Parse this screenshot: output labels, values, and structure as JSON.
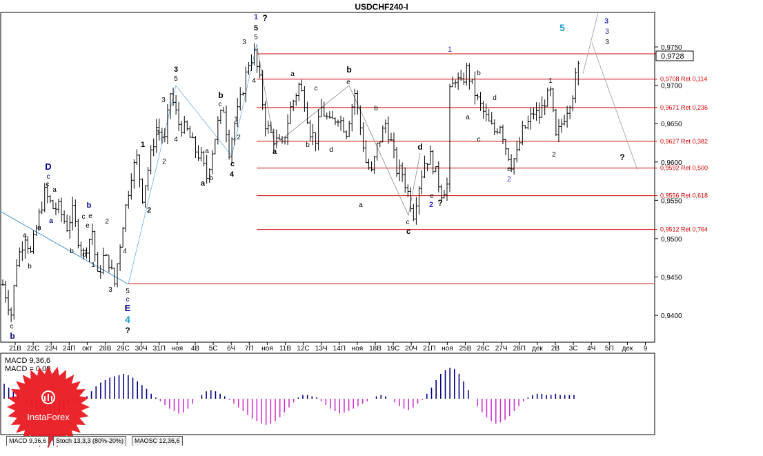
{
  "window": {
    "title": "USDCHF240-I",
    "current_price_label": "0,9728",
    "logo_text": "InstaForex"
  },
  "indicator_tabs": [
    {
      "label": "MACD 9,36,6"
    },
    {
      "label": "Stoch 13,3,3 (80%-20%)"
    },
    {
      "label": "MAOSC 12,36,6"
    }
  ],
  "chart_data": {
    "type": "candlestick",
    "symbol": "USDCHF240-I",
    "timeframe": "H4",
    "ylim": [
      0.9365,
      0.9795
    ],
    "y_ticks": [
      "0,9750",
      "0,9700",
      "0,9650",
      "0,9600",
      "0,9550",
      "0,9500",
      "0,9450",
      "0,9400"
    ],
    "y_tick_values": [
      0.975,
      0.97,
      0.965,
      0.96,
      0.955,
      0.95,
      0.945,
      0.94
    ],
    "x_ticks": [
      "21В",
      "22С",
      "23Ч",
      "24П",
      "окт",
      "28В",
      "29С",
      "30Ч",
      "31П",
      "ноя",
      "4В",
      "5С",
      "6Ч",
      "7П",
      "ноя",
      "11В",
      "12С",
      "13Ч",
      "14П",
      "ноя",
      "18В",
      "19С",
      "20Ч",
      "21П",
      "ноя",
      "25В",
      "26С",
      "27Ч",
      "28П",
      "дек",
      "2В",
      "3С",
      "4Ч",
      "5П",
      "дек",
      "9"
    ],
    "fib_levels": [
      {
        "price": 0.9708,
        "label": "0,9708 Ret 0,114"
      },
      {
        "price": 0.9671,
        "label": "0,9671 Ret 0,236"
      },
      {
        "price": 0.9627,
        "label": "0,9627 Ret 0,382"
      },
      {
        "price": 0.9592,
        "label": "0,9592 Ret 0,500"
      },
      {
        "price": 0.9556,
        "label": "0,9556 Ret 0,618"
      },
      {
        "price": 0.9512,
        "label": "0,9512 Ret 0,764"
      }
    ],
    "fib_range": {
      "high": 0.9741,
      "low": 0.9441
    },
    "current_price": 0.9728,
    "path_points": [
      [
        0,
        0.944
      ],
      [
        3,
        0.9402
      ],
      [
        5,
        0.947
      ],
      [
        8,
        0.9505
      ],
      [
        10,
        0.948
      ],
      [
        13,
        0.953
      ],
      [
        15,
        0.956
      ],
      [
        18,
        0.954
      ],
      [
        20,
        0.954
      ],
      [
        23,
        0.9515
      ],
      [
        25,
        0.9535
      ],
      [
        27,
        0.95
      ],
      [
        29,
        0.948
      ],
      [
        32,
        0.951
      ],
      [
        34,
        0.945
      ],
      [
        36,
        0.9475
      ],
      [
        38,
        0.947
      ],
      [
        40,
        0.9441
      ],
      [
        43,
        0.952
      ],
      [
        46,
        0.9585
      ],
      [
        48,
        0.9605
      ],
      [
        50,
        0.9555
      ],
      [
        52,
        0.959
      ],
      [
        55,
        0.9645
      ],
      [
        58,
        0.9628
      ],
      [
        60,
        0.969
      ],
      [
        63,
        0.965
      ],
      [
        66,
        0.964
      ],
      [
        69,
        0.9615
      ],
      [
        71,
        0.9605
      ],
      [
        73,
        0.958
      ],
      [
        75,
        0.9615
      ],
      [
        77,
        0.965
      ],
      [
        79,
        0.967
      ],
      [
        81,
        0.9615
      ],
      [
        83,
        0.965
      ],
      [
        85,
        0.968
      ],
      [
        88,
        0.973
      ],
      [
        90,
        0.9741
      ],
      [
        92,
        0.9705
      ],
      [
        94,
        0.965
      ],
      [
        97,
        0.963
      ],
      [
        100,
        0.962
      ],
      [
        103,
        0.967
      ],
      [
        106,
        0.97
      ],
      [
        108,
        0.968
      ],
      [
        110,
        0.964
      ],
      [
        112,
        0.963
      ],
      [
        114,
        0.967
      ],
      [
        117,
        0.965
      ],
      [
        120,
        0.966
      ],
      [
        123,
        0.964
      ],
      [
        126,
        0.969
      ],
      [
        128,
        0.9645
      ],
      [
        130,
        0.96
      ],
      [
        132,
        0.9585
      ],
      [
        134,
        0.962
      ],
      [
        137,
        0.965
      ],
      [
        139,
        0.9625
      ],
      [
        141,
        0.959
      ],
      [
        143,
        0.9585
      ],
      [
        145,
        0.956
      ],
      [
        147,
        0.9533
      ],
      [
        149,
        0.957
      ],
      [
        151,
        0.96
      ],
      [
        153,
        0.9607
      ],
      [
        155,
        0.9585
      ],
      [
        157,
        0.956
      ],
      [
        159,
        0.957
      ],
      [
        160,
        0.969
      ],
      [
        162,
        0.971
      ],
      [
        164,
        0.97
      ],
      [
        166,
        0.972
      ],
      [
        168,
        0.97
      ],
      [
        170,
        0.968
      ],
      [
        172,
        0.9665
      ],
      [
        174,
        0.965
      ],
      [
        176,
        0.964
      ],
      [
        178,
        0.965
      ],
      [
        180,
        0.962
      ],
      [
        182,
        0.9598
      ],
      [
        184,
        0.961
      ],
      [
        186,
        0.964
      ],
      [
        188,
        0.965
      ],
      [
        190,
        0.9665
      ],
      [
        192,
        0.966
      ],
      [
        194,
        0.968
      ],
      [
        196,
        0.969
      ],
      [
        198,
        0.963
      ],
      [
        200,
        0.965
      ],
      [
        202,
        0.967
      ],
      [
        204,
        0.969
      ],
      [
        206,
        0.9728
      ]
    ],
    "macd_values": [
      1.2,
      0.9,
      0.6,
      0.3,
      0.0,
      -0.3,
      -0.6,
      -0.9,
      -1.2,
      -1.4,
      -1.5,
      -1.4,
      -1.1,
      -0.8,
      -0.5,
      -0.3,
      -0.2,
      -0.1,
      0.2,
      0.6,
      1.0,
      1.3,
      1.5,
      1.7,
      1.8,
      1.9,
      2.0,
      1.9,
      1.7,
      1.4,
      1.1,
      0.8,
      0.4,
      0.1,
      -0.2,
      -0.5,
      -0.8,
      -1.0,
      -1.2,
      -1.1,
      -0.8,
      -0.4,
      0.0,
      0.3,
      0.6,
      0.7,
      0.6,
      0.4,
      0.2,
      -0.1,
      -0.4,
      -0.7,
      -1.0,
      -1.3,
      -1.6,
      -1.8,
      -2.0,
      -2.1,
      -2.0,
      -1.8,
      -1.5,
      -1.1,
      -0.7,
      -0.3,
      0.1,
      0.3,
      0.3,
      0.2,
      0.1,
      -0.2,
      -0.5,
      -0.8,
      -1.0,
      -1.2,
      -1.1,
      -1.0,
      -0.8,
      -0.6,
      -0.4,
      -0.2,
      0.0,
      0.2,
      0.3,
      0.2,
      0.0,
      -0.3,
      -0.6,
      -0.8,
      -0.9,
      -0.7,
      -0.4,
      -0.1,
      0.4,
      0.9,
      1.5,
      2.0,
      2.3,
      2.5,
      2.4,
      2.0,
      1.4,
      0.7,
      0.0,
      -0.6,
      -1.1,
      -1.5,
      -1.8,
      -2.0,
      -1.9,
      -1.7,
      -1.4,
      -1.0,
      -0.6,
      -0.2,
      0.1,
      0.3,
      0.4,
      0.4,
      0.3,
      0.3,
      0.4,
      0.3,
      0.3,
      0.3,
      0.3
    ]
  },
  "wave_labels": [
    {
      "text": "b",
      "x": 18,
      "y": 491,
      "color": "#000080",
      "size": 12,
      "bold": true
    },
    {
      "text": "c",
      "x": 17,
      "y": 476,
      "color": "#000000",
      "size": 10
    },
    {
      "text": "a",
      "x": 36,
      "y": 344,
      "color": "#000000",
      "size": 10
    },
    {
      "text": "b",
      "x": 43,
      "y": 389,
      "color": "#000000",
      "size": 10
    },
    {
      "text": "D",
      "x": 70,
      "y": 246,
      "color": "#000080",
      "size": 13,
      "bold": true
    },
    {
      "text": "c",
      "x": 70,
      "y": 259,
      "color": "#000080",
      "size": 10
    },
    {
      "text": "c",
      "x": 69,
      "y": 270,
      "color": "#000000",
      "size": 10
    },
    {
      "text": "a",
      "x": 79,
      "y": 278,
      "color": "#000000",
      "size": 10
    },
    {
      "text": "a",
      "x": 74,
      "y": 323,
      "color": "#000080",
      "size": 10,
      "bold": true
    },
    {
      "text": "a",
      "x": 57,
      "y": 333,
      "color": "#000000",
      "size": 10
    },
    {
      "text": "b",
      "x": 129,
      "y": 301,
      "color": "#000080",
      "size": 11,
      "bold": true
    },
    {
      "text": "e",
      "x": 131,
      "y": 316,
      "color": "#000000",
      "size": 10
    },
    {
      "text": "c",
      "x": 121,
      "y": 317,
      "color": "#000000",
      "size": 10
    },
    {
      "text": "e",
      "x": 127,
      "y": 330,
      "color": "#000000",
      "size": 10
    },
    {
      "text": "d",
      "x": 122,
      "y": 372,
      "color": "#000000",
      "size": 10
    },
    {
      "text": "b",
      "x": 104,
      "y": 367,
      "color": "#000000",
      "size": 10
    },
    {
      "text": "1",
      "x": 135,
      "y": 387,
      "color": "#000000",
      "size": 10
    },
    {
      "text": "2",
      "x": 155,
      "y": 324,
      "color": "#000000",
      "size": 10
    },
    {
      "text": "3",
      "x": 160,
      "y": 423,
      "color": "#000000",
      "size": 10
    },
    {
      "text": "4",
      "x": 181,
      "y": 367,
      "color": "#000000",
      "size": 10
    },
    {
      "text": "5",
      "x": 185,
      "y": 425,
      "color": "#000000",
      "size": 10
    },
    {
      "text": "c",
      "x": 185,
      "y": 437,
      "color": "#000080",
      "size": 10
    },
    {
      "text": "E",
      "x": 185,
      "y": 451,
      "color": "#000080",
      "size": 13,
      "bold": true
    },
    {
      "text": "4",
      "x": 185,
      "y": 468,
      "color": "#1a9bd7",
      "size": 14,
      "bold": true
    },
    {
      "text": "?",
      "x": 185,
      "y": 483,
      "color": "#000000",
      "size": 12,
      "bold": true
    },
    {
      "text": "1",
      "x": 207,
      "y": 213,
      "color": "#000000",
      "size": 11,
      "bold": true
    },
    {
      "text": "2",
      "x": 216,
      "y": 308,
      "color": "#000000",
      "size": 11,
      "bold": true
    },
    {
      "text": "3",
      "x": 255,
      "y": 104,
      "color": "#000000",
      "size": 11,
      "bold": true
    },
    {
      "text": "5",
      "x": 255,
      "y": 117,
      "color": "#000000",
      "size": 10
    },
    {
      "text": "1",
      "x": 229,
      "y": 195,
      "color": "#000000",
      "size": 10
    },
    {
      "text": "2",
      "x": 238,
      "y": 237,
      "color": "#000000",
      "size": 10
    },
    {
      "text": "3",
      "x": 237,
      "y": 148,
      "color": "#000000",
      "size": 10
    },
    {
      "text": "4",
      "x": 255,
      "y": 205,
      "color": "#000000",
      "size": 10
    },
    {
      "text": "a",
      "x": 300,
      "y": 222,
      "color": "#000000",
      "size": 10
    },
    {
      "text": "a",
      "x": 294,
      "y": 269,
      "color": "#000000",
      "size": 11,
      "bold": true
    },
    {
      "text": "b",
      "x": 306,
      "y": 261,
      "color": "#000000",
      "size": 10
    },
    {
      "text": "b",
      "x": 320,
      "y": 142,
      "color": "#000000",
      "size": 12,
      "bold": true
    },
    {
      "text": "c",
      "x": 319,
      "y": 154,
      "color": "#000000",
      "size": 10
    },
    {
      "text": "c",
      "x": 337,
      "y": 241,
      "color": "#000000",
      "size": 11,
      "bold": true
    },
    {
      "text": "4",
      "x": 336,
      "y": 256,
      "color": "#000000",
      "size": 11,
      "bold": true
    },
    {
      "text": "2",
      "x": 346,
      "y": 202,
      "color": "#000000",
      "size": 10
    },
    {
      "text": "1",
      "x": 342,
      "y": 176,
      "color": "#000000",
      "size": 10
    },
    {
      "text": "3",
      "x": 354,
      "y": 64,
      "color": "#000000",
      "size": 10
    },
    {
      "text": "4",
      "x": 368,
      "y": 120,
      "color": "#000000",
      "size": 10
    },
    {
      "text": "1",
      "x": 371,
      "y": 28,
      "color": "#3333bb",
      "size": 11,
      "bold": true
    },
    {
      "text": "5",
      "x": 371,
      "y": 44,
      "color": "#000000",
      "size": 11,
      "bold": true
    },
    {
      "text": "5",
      "x": 371,
      "y": 57,
      "color": "#000000",
      "size": 10
    },
    {
      "text": "?",
      "x": 384,
      "y": 30,
      "color": "#000000",
      "size": 12,
      "bold": true
    },
    {
      "text": "a",
      "x": 424,
      "y": 110,
      "color": "#000000",
      "size": 10
    },
    {
      "text": "c",
      "x": 458,
      "y": 131,
      "color": "#000000",
      "size": 10
    },
    {
      "text": "a",
      "x": 398,
      "y": 223,
      "color": "#000000",
      "size": 11,
      "bold": true
    },
    {
      "text": "b",
      "x": 446,
      "y": 213,
      "color": "#000000",
      "size": 10
    },
    {
      "text": "d",
      "x": 480,
      "y": 220,
      "color": "#000000",
      "size": 10
    },
    {
      "text": "b",
      "x": 506,
      "y": 105,
      "color": "#000000",
      "size": 12,
      "bold": true
    },
    {
      "text": "e",
      "x": 505,
      "y": 122,
      "color": "#000000",
      "size": 10
    },
    {
      "text": "b",
      "x": 545,
      "y": 160,
      "color": "#000000",
      "size": 10
    },
    {
      "text": "a",
      "x": 523,
      "y": 300,
      "color": "#000000",
      "size": 10
    },
    {
      "text": "c",
      "x": 591,
      "y": 325,
      "color": "#000000",
      "size": 10
    },
    {
      "text": "c",
      "x": 592,
      "y": 339,
      "color": "#000000",
      "size": 11,
      "bold": true
    },
    {
      "text": "d",
      "x": 609,
      "y": 217,
      "color": "#000000",
      "size": 12,
      "bold": true
    },
    {
      "text": "e",
      "x": 626,
      "y": 287,
      "color": "#000000",
      "size": 10
    },
    {
      "text": "2",
      "x": 625,
      "y": 300,
      "color": "#3333bb",
      "size": 11,
      "bold": true
    },
    {
      "text": "?",
      "x": 638,
      "y": 298,
      "color": "#000000",
      "size": 12,
      "bold": true
    },
    {
      "text": "1",
      "x": 652,
      "y": 75,
      "color": "#3333bb",
      "size": 11
    },
    {
      "text": "b",
      "x": 694,
      "y": 109,
      "color": "#000000",
      "size": 10
    },
    {
      "text": "a",
      "x": 678,
      "y": 173,
      "color": "#000000",
      "size": 10
    },
    {
      "text": "c",
      "x": 694,
      "y": 205,
      "color": "#000000",
      "size": 10
    },
    {
      "text": "d",
      "x": 717,
      "y": 145,
      "color": "#000000",
      "size": 10
    },
    {
      "text": "e",
      "x": 738,
      "y": 248,
      "color": "#000000",
      "size": 10
    },
    {
      "text": "2",
      "x": 738,
      "y": 263,
      "color": "#3333bb",
      "size": 11
    },
    {
      "text": "1",
      "x": 798,
      "y": 120,
      "color": "#000000",
      "size": 10
    },
    {
      "text": "2",
      "x": 803,
      "y": 227,
      "color": "#000000",
      "size": 10
    },
    {
      "text": "5",
      "x": 815,
      "y": 45,
      "color": "#1a9bd7",
      "size": 14,
      "bold": true
    },
    {
      "text": "3",
      "x": 879,
      "y": 34,
      "color": "#3333bb",
      "size": 11,
      "bold": true
    },
    {
      "text": "3",
      "x": 880,
      "y": 49,
      "color": "#3333bb",
      "size": 11
    },
    {
      "text": "3",
      "x": 880,
      "y": 64,
      "color": "#000000",
      "size": 10
    },
    {
      "text": "?",
      "x": 902,
      "y": 232,
      "color": "#000000",
      "size": 12,
      "bold": true
    }
  ],
  "indicator": {
    "line1": "MACD 9,36,6",
    "line2": "MACD = 0,00"
  }
}
